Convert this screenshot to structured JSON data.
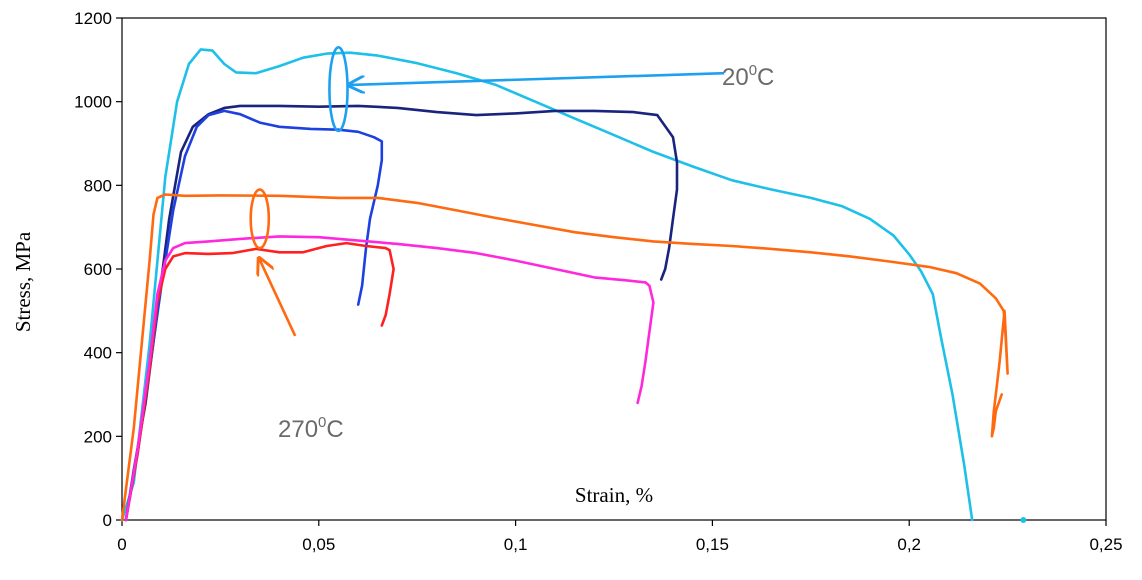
{
  "chart_data": {
    "type": "line",
    "title": "",
    "xlabel": "Strain, %",
    "ylabel": "Stress, MPa",
    "xlim": [
      0,
      0.25
    ],
    "ylim": [
      0,
      1200
    ],
    "x_ticks": [
      0,
      0.05,
      0.1,
      0.15,
      0.2,
      0.25
    ],
    "x_tick_labels": [
      "0",
      "0,05",
      "0,1",
      "0,15",
      "0,2",
      "0,25"
    ],
    "y_ticks": [
      0,
      200,
      400,
      600,
      800,
      1000,
      1200
    ],
    "y_tick_labels": [
      "0",
      "200",
      "400",
      "600",
      "800",
      "1000",
      "1200"
    ],
    "grid": false,
    "legend": "none",
    "series": [
      {
        "color": "#1ec0e8",
        "group": "20 C",
        "points": [
          [
            0.0,
            0
          ],
          [
            0.003,
            90
          ],
          [
            0.007,
            420
          ],
          [
            0.011,
            820
          ],
          [
            0.014,
            1000
          ],
          [
            0.017,
            1090
          ],
          [
            0.02,
            1125
          ],
          [
            0.023,
            1122
          ],
          [
            0.026,
            1090
          ],
          [
            0.029,
            1070
          ],
          [
            0.034,
            1068
          ],
          [
            0.04,
            1085
          ],
          [
            0.046,
            1105
          ],
          [
            0.052,
            1115
          ],
          [
            0.058,
            1117
          ],
          [
            0.065,
            1110
          ],
          [
            0.075,
            1092
          ],
          [
            0.085,
            1068
          ],
          [
            0.095,
            1040
          ],
          [
            0.105,
            1000
          ],
          [
            0.115,
            960
          ],
          [
            0.125,
            920
          ],
          [
            0.135,
            880
          ],
          [
            0.145,
            845
          ],
          [
            0.155,
            812
          ],
          [
            0.165,
            790
          ],
          [
            0.175,
            770
          ],
          [
            0.183,
            750
          ],
          [
            0.19,
            720
          ],
          [
            0.196,
            680
          ],
          [
            0.2,
            635
          ],
          [
            0.203,
            595
          ],
          [
            0.206,
            540
          ],
          [
            0.208,
            440
          ],
          [
            0.211,
            300
          ],
          [
            0.214,
            130
          ],
          [
            0.216,
            0
          ]
        ]
      },
      {
        "color": "#1a237e",
        "group": "20 C",
        "points": [
          [
            0.001,
            0
          ],
          [
            0.003,
            120
          ],
          [
            0.006,
            280
          ],
          [
            0.009,
            500
          ],
          [
            0.012,
            720
          ],
          [
            0.015,
            880
          ],
          [
            0.018,
            940
          ],
          [
            0.022,
            970
          ],
          [
            0.026,
            985
          ],
          [
            0.03,
            990
          ],
          [
            0.04,
            990
          ],
          [
            0.05,
            988
          ],
          [
            0.06,
            990
          ],
          [
            0.07,
            985
          ],
          [
            0.08,
            975
          ],
          [
            0.09,
            968
          ],
          [
            0.1,
            972
          ],
          [
            0.11,
            978
          ],
          [
            0.12,
            978
          ],
          [
            0.13,
            975
          ],
          [
            0.136,
            968
          ],
          [
            0.14,
            915
          ],
          [
            0.141,
            855
          ],
          [
            0.141,
            790
          ],
          [
            0.14,
            720
          ],
          [
            0.139,
            650
          ],
          [
            0.138,
            600
          ],
          [
            0.137,
            575
          ]
        ]
      },
      {
        "color": "#1e40e0",
        "group": "20 C",
        "points": [
          [
            0.001,
            0
          ],
          [
            0.004,
            160
          ],
          [
            0.007,
            360
          ],
          [
            0.01,
            560
          ],
          [
            0.013,
            740
          ],
          [
            0.016,
            870
          ],
          [
            0.019,
            940
          ],
          [
            0.022,
            968
          ],
          [
            0.026,
            978
          ],
          [
            0.03,
            970
          ],
          [
            0.035,
            950
          ],
          [
            0.04,
            940
          ],
          [
            0.048,
            935
          ],
          [
            0.055,
            933
          ],
          [
            0.06,
            928
          ],
          [
            0.064,
            915
          ],
          [
            0.066,
            905
          ],
          [
            0.066,
            860
          ],
          [
            0.065,
            800
          ],
          [
            0.063,
            720
          ],
          [
            0.062,
            650
          ],
          [
            0.061,
            560
          ],
          [
            0.06,
            515
          ]
        ]
      },
      {
        "color": "#ff6a10",
        "group": "270 C",
        "points": [
          [
            0.0,
            0
          ],
          [
            0.003,
            220
          ],
          [
            0.005,
            420
          ],
          [
            0.007,
            620
          ],
          [
            0.008,
            730
          ],
          [
            0.009,
            770
          ],
          [
            0.011,
            778
          ],
          [
            0.016,
            775
          ],
          [
            0.025,
            776
          ],
          [
            0.04,
            775
          ],
          [
            0.055,
            770
          ],
          [
            0.065,
            770
          ],
          [
            0.075,
            758
          ],
          [
            0.085,
            740
          ],
          [
            0.095,
            722
          ],
          [
            0.105,
            705
          ],
          [
            0.115,
            688
          ],
          [
            0.125,
            676
          ],
          [
            0.135,
            666
          ],
          [
            0.145,
            660
          ],
          [
            0.155,
            655
          ],
          [
            0.165,
            648
          ],
          [
            0.175,
            640
          ],
          [
            0.185,
            630
          ],
          [
            0.195,
            618
          ],
          [
            0.205,
            605
          ],
          [
            0.212,
            590
          ],
          [
            0.218,
            565
          ],
          [
            0.222,
            530
          ],
          [
            0.224,
            500
          ],
          [
            0.2245,
            440
          ],
          [
            0.225,
            350
          ],
          [
            0.2245,
            450
          ],
          [
            0.2242,
            500
          ],
          [
            0.223,
            380
          ],
          [
            0.222,
            300
          ],
          [
            0.2215,
            260
          ],
          [
            0.221,
            200
          ],
          [
            0.2215,
            220
          ],
          [
            0.222,
            260
          ],
          [
            0.2235,
            300
          ]
        ]
      },
      {
        "color": "#ff2020",
        "group": "270 C",
        "points": [
          [
            0.001,
            0
          ],
          [
            0.004,
            160
          ],
          [
            0.007,
            360
          ],
          [
            0.009,
            520
          ],
          [
            0.011,
            600
          ],
          [
            0.013,
            630
          ],
          [
            0.016,
            638
          ],
          [
            0.022,
            636
          ],
          [
            0.028,
            638
          ],
          [
            0.034,
            648
          ],
          [
            0.04,
            640
          ],
          [
            0.046,
            640
          ],
          [
            0.052,
            655
          ],
          [
            0.057,
            662
          ],
          [
            0.062,
            655
          ],
          [
            0.067,
            650
          ],
          [
            0.068,
            645
          ],
          [
            0.069,
            600
          ],
          [
            0.068,
            540
          ],
          [
            0.067,
            490
          ],
          [
            0.066,
            465
          ]
        ]
      },
      {
        "color": "#ff28dc",
        "group": "270 C",
        "points": [
          [
            0.001,
            0
          ],
          [
            0.004,
            170
          ],
          [
            0.007,
            380
          ],
          [
            0.009,
            540
          ],
          [
            0.011,
            620
          ],
          [
            0.013,
            650
          ],
          [
            0.016,
            662
          ],
          [
            0.022,
            666
          ],
          [
            0.03,
            672
          ],
          [
            0.04,
            678
          ],
          [
            0.05,
            676
          ],
          [
            0.06,
            668
          ],
          [
            0.07,
            660
          ],
          [
            0.08,
            650
          ],
          [
            0.09,
            638
          ],
          [
            0.1,
            620
          ],
          [
            0.11,
            600
          ],
          [
            0.12,
            580
          ],
          [
            0.128,
            573
          ],
          [
            0.133,
            568
          ],
          [
            0.134,
            560
          ],
          [
            0.135,
            520
          ],
          [
            0.134,
            450
          ],
          [
            0.133,
            380
          ],
          [
            0.132,
            320
          ],
          [
            0.131,
            280
          ]
        ]
      }
    ],
    "annotations": [
      {
        "text": "20",
        "superscript": "0",
        "suffix": "C",
        "color": "#1ea0f0",
        "ellipse": {
          "cx": 0.055,
          "cy": 1030,
          "rx": 0.0023,
          "ry": 100
        },
        "arrow_from": [
          0.153,
          1068
        ],
        "arrow_to": [
          0.058,
          1040
        ]
      },
      {
        "text": "270",
        "superscript": "0",
        "suffix": "C",
        "color": "#ff6a10",
        "ellipse": {
          "cx": 0.035,
          "cy": 720,
          "rx": 0.0023,
          "ry": 70
        },
        "arrow_from": [
          0.044,
          440
        ],
        "arrow_to": [
          0.035,
          622
        ]
      }
    ]
  }
}
